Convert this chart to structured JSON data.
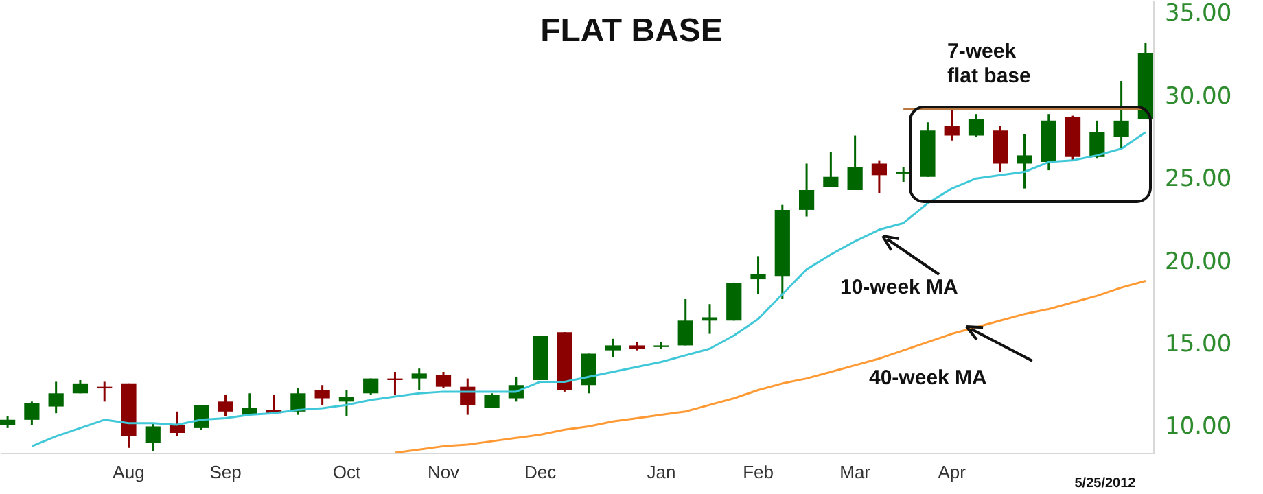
{
  "chart_data": {
    "type": "candlestick",
    "title": "FLAT BASE",
    "categories": [
      null,
      null,
      null,
      null,
      null,
      "Aug",
      null,
      null,
      null,
      "Sep",
      null,
      null,
      null,
      null,
      "Oct",
      null,
      null,
      null,
      "Nov",
      null,
      null,
      null,
      "Dec",
      null,
      null,
      null,
      null,
      "Jan",
      null,
      null,
      null,
      "Feb",
      null,
      null,
      null,
      "Mar",
      null,
      null,
      null,
      "Apr",
      null,
      null,
      null,
      null,
      null,
      null,
      null,
      null
    ],
    "ohlc": [
      [
        10.1,
        10.6,
        9.9,
        10.4
      ],
      [
        10.4,
        11.5,
        10.1,
        11.4
      ],
      [
        11.2,
        12.7,
        10.8,
        12.0
      ],
      [
        12.0,
        12.8,
        12.0,
        12.6
      ],
      [
        12.4,
        12.7,
        11.5,
        12.3
      ],
      [
        12.6,
        12.6,
        8.7,
        9.4
      ],
      [
        9.0,
        10.2,
        8.5,
        10.0
      ],
      [
        10.1,
        10.9,
        9.4,
        9.6
      ],
      [
        9.9,
        11.3,
        9.8,
        11.3
      ],
      [
        11.5,
        11.9,
        10.6,
        10.9
      ],
      [
        10.7,
        12.0,
        10.7,
        11.1
      ],
      [
        11.0,
        11.9,
        10.8,
        10.8
      ],
      [
        10.9,
        12.3,
        10.7,
        12.0
      ],
      [
        12.2,
        12.5,
        11.3,
        11.7
      ],
      [
        11.5,
        12.2,
        10.6,
        11.8
      ],
      [
        12.0,
        12.9,
        11.9,
        12.9
      ],
      [
        12.9,
        13.3,
        11.9,
        12.8
      ],
      [
        12.9,
        13.5,
        12.2,
        13.2
      ],
      [
        13.1,
        13.3,
        12.3,
        12.4
      ],
      [
        12.4,
        12.9,
        10.7,
        11.3
      ],
      [
        11.1,
        12.0,
        11.1,
        11.9
      ],
      [
        11.7,
        13.0,
        11.5,
        12.5
      ],
      [
        12.8,
        15.5,
        12.8,
        15.5
      ],
      [
        15.7,
        15.7,
        12.1,
        12.2
      ],
      [
        12.5,
        14.4,
        12.0,
        14.4
      ],
      [
        14.6,
        15.3,
        14.2,
        14.9
      ],
      [
        14.9,
        15.1,
        14.6,
        14.7
      ],
      [
        14.8,
        15.1,
        14.7,
        14.9
      ],
      [
        14.9,
        17.7,
        14.9,
        16.4
      ],
      [
        16.4,
        17.4,
        15.6,
        16.6
      ],
      [
        16.4,
        18.7,
        16.4,
        18.7
      ],
      [
        18.9,
        20.3,
        18.0,
        19.2
      ],
      [
        19.1,
        23.4,
        17.7,
        23.1
      ],
      [
        23.1,
        25.9,
        22.7,
        24.3
      ],
      [
        24.5,
        26.6,
        24.5,
        25.1
      ],
      [
        24.3,
        27.6,
        24.3,
        25.7
      ],
      [
        25.9,
        26.1,
        24.1,
        25.2
      ],
      [
        25.3,
        25.7,
        24.8,
        25.4
      ],
      [
        25.1,
        28.4,
        25.1,
        27.9
      ],
      [
        28.2,
        29.2,
        27.3,
        27.6
      ],
      [
        27.6,
        28.9,
        27.5,
        28.6
      ],
      [
        27.9,
        28.2,
        25.4,
        25.9
      ],
      [
        25.9,
        27.7,
        24.4,
        26.4
      ],
      [
        26.0,
        28.9,
        25.5,
        28.5
      ],
      [
        28.7,
        28.8,
        26.1,
        26.3
      ],
      [
        26.3,
        28.5,
        26.2,
        27.8
      ],
      [
        27.5,
        30.9,
        26.8,
        28.5
      ],
      [
        28.6,
        33.2,
        28.6,
        32.6
      ]
    ],
    "colors": [
      "#006600",
      "#006600",
      "#006600",
      "#006600",
      "#8b0000",
      "#8b0000",
      "#006600",
      "#8b0000",
      "#006600",
      "#8b0000",
      "#006600",
      "#8b0000",
      "#006600",
      "#8b0000",
      "#006600",
      "#006600",
      "#8b0000",
      "#006600",
      "#8b0000",
      "#8b0000",
      "#006600",
      "#006600",
      "#006600",
      "#8b0000",
      "#006600",
      "#006600",
      "#8b0000",
      "#006600",
      "#006600",
      "#006600",
      "#006600",
      "#006600",
      "#006600",
      "#006600",
      "#006600",
      "#006600",
      "#8b0000",
      "#006600",
      "#006600",
      "#8b0000",
      "#006600",
      "#8b0000",
      "#006600",
      "#006600",
      "#8b0000",
      "#006600",
      "#006600",
      "#006600"
    ],
    "series": [
      {
        "type": "line",
        "name": "10-week MA",
        "color": "#40c8d8",
        "values": [
          null,
          8.8,
          9.4,
          9.9,
          10.4,
          10.2,
          10.2,
          10.1,
          10.4,
          10.5,
          10.7,
          10.8,
          11.0,
          11.1,
          11.3,
          11.6,
          11.8,
          12.0,
          12.1,
          12.1,
          12.1,
          12.1,
          12.7,
          12.7,
          13.0,
          13.3,
          13.6,
          13.9,
          14.3,
          14.7,
          15.5,
          16.5,
          18.0,
          19.5,
          20.4,
          21.2,
          21.9,
          22.3,
          23.5,
          24.4,
          25.0,
          25.2,
          25.4,
          26.0,
          26.1,
          26.4,
          26.8,
          27.8
        ]
      },
      {
        "type": "line",
        "name": "40-week MA",
        "color": "#ff9933",
        "values": [
          null,
          null,
          null,
          null,
          null,
          null,
          null,
          null,
          null,
          null,
          null,
          null,
          null,
          null,
          null,
          null,
          8.4,
          8.6,
          8.8,
          8.9,
          9.1,
          9.3,
          9.5,
          9.8,
          10.0,
          10.3,
          10.5,
          10.7,
          10.9,
          11.3,
          11.7,
          12.2,
          12.6,
          12.9,
          13.3,
          13.7,
          14.1,
          14.6,
          15.1,
          15.6,
          16.0,
          16.4,
          16.8,
          17.1,
          17.5,
          17.9,
          18.4,
          18.8
        ]
      },
      {
        "type": "line",
        "color": "#b87840",
        "values": [
          null,
          null,
          null,
          null,
          null,
          null,
          null,
          null,
          null,
          null,
          null,
          null,
          null,
          null,
          null,
          null,
          null,
          null,
          null,
          null,
          null,
          null,
          null,
          null,
          null,
          null,
          null,
          null,
          null,
          null,
          null,
          null,
          null,
          null,
          null,
          null,
          null,
          29.2,
          29.2,
          29.2,
          29.2,
          29.2,
          29.2,
          29.2,
          29.2,
          29.2,
          29.2,
          29.2
        ]
      }
    ],
    "annotations": [
      "7-week\nflat base",
      "5/25/2012"
    ],
    "ylim": [
      8.4,
      35.8
    ],
    "yticks": [
      {
        "value": 10,
        "label": "10.00"
      },
      {
        "value": 15,
        "label": "15.00"
      },
      {
        "value": 20,
        "label": "20.00"
      },
      {
        "value": 25,
        "label": "25.00"
      },
      {
        "value": 30,
        "label": "30.00"
      },
      {
        "value": 35,
        "label": "35.00"
      }
    ]
  }
}
